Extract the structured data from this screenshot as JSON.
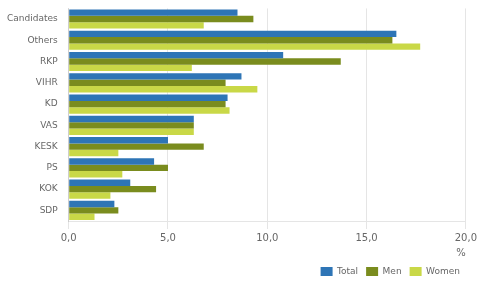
{
  "chart_data": {
    "type": "bar",
    "orientation": "horizontal",
    "categories": [
      "Candidates",
      "Others",
      "RKP",
      "VIHR",
      "KD",
      "VAS",
      "KESK",
      "PS",
      "KOK",
      "SDP"
    ],
    "series": [
      {
        "name": "Total",
        "color": "#2E75B6",
        "values": [
          8.5,
          16.5,
          10.8,
          8.7,
          8.0,
          6.3,
          5.0,
          4.3,
          3.1,
          2.3
        ]
      },
      {
        "name": "Men",
        "color": "#7A8C1E",
        "values": [
          9.3,
          16.3,
          13.7,
          7.9,
          7.9,
          6.3,
          6.8,
          5.0,
          4.4,
          2.5
        ]
      },
      {
        "name": "Women",
        "color": "#C9D847",
        "values": [
          6.8,
          17.7,
          6.2,
          9.5,
          8.1,
          6.3,
          2.5,
          2.7,
          2.1,
          1.3
        ]
      }
    ],
    "xlim": [
      0,
      20
    ],
    "xticks": [
      {
        "value": 0,
        "label": "0,0"
      },
      {
        "value": 5,
        "label": "5,0"
      },
      {
        "value": 10,
        "label": "10,0"
      },
      {
        "value": 15,
        "label": "15,0"
      },
      {
        "value": 20,
        "label": "20,0"
      }
    ],
    "xlabel": "%",
    "grid": "x",
    "legend": "lower right"
  }
}
